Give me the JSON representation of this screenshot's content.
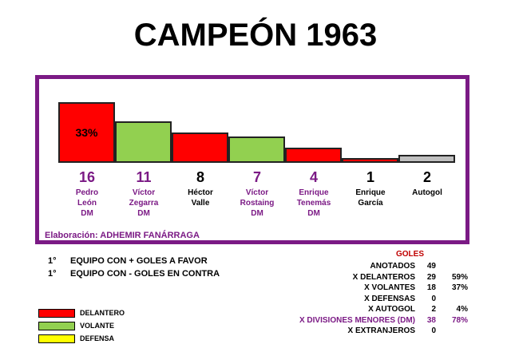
{
  "title": "CAMPEÓN 1963",
  "colors": {
    "frame": "#7b1a85",
    "delantero": "#ff0000",
    "volante": "#92d050",
    "defensa": "#ffff00",
    "autogol": "#bfbfbf",
    "dm_text": "#7b1a85",
    "goles_header": "#c00000"
  },
  "chart_data": {
    "type": "bar",
    "categories": [
      "Pedro León DM",
      "Víctor Zegarra DM",
      "Héctor Valle",
      "Víctor Rostaing DM",
      "Enrique Tenemás DM",
      "Enrique García",
      "Autogol"
    ],
    "values": [
      16,
      11,
      8,
      7,
      4,
      1,
      2
    ],
    "annotations": [
      {
        "category": "Pedro León DM",
        "text": "33%"
      }
    ],
    "ylim": [
      0,
      16
    ],
    "grid": false
  },
  "players": [
    {
      "goals": "16",
      "name": "Pedro\nLeón\nDM",
      "role": "delantero",
      "dm": true
    },
    {
      "goals": "11",
      "name": "Víctor\nZegarra\nDM",
      "role": "volante",
      "dm": true
    },
    {
      "goals": "8",
      "name": "Héctor\nValle",
      "role": "delantero",
      "dm": false
    },
    {
      "goals": "7",
      "name": "Víctor\nRostaing\nDM",
      "role": "volante",
      "dm": true
    },
    {
      "goals": "4",
      "name": "Enrique\nTenemás\nDM",
      "role": "delantero",
      "dm": true
    },
    {
      "goals": "1",
      "name": "Enrique\nGarcía",
      "role": "delantero",
      "dm": false
    },
    {
      "goals": "2",
      "name": "Autogol",
      "role": "autogol",
      "dm": false
    }
  ],
  "top_pct": "33%",
  "credit": "Elaboración: ADHEMIR FANÁRRAGA",
  "notes": [
    {
      "ord": "1°",
      "text": "EQUIPO CON + GOLES A FAVOR"
    },
    {
      "ord": "1°",
      "text": "EQUIPO CON - GOLES EN CONTRA"
    }
  ],
  "goles": {
    "header": "GOLES",
    "rows": [
      {
        "label": "ANOTADOS",
        "value": "49",
        "pct": "",
        "highlight": false
      },
      {
        "label": "X DELANTEROS",
        "value": "29",
        "pct": "59%",
        "highlight": false
      },
      {
        "label": "X VOLANTES",
        "value": "18",
        "pct": "37%",
        "highlight": false
      },
      {
        "label": "X DEFENSAS",
        "value": "0",
        "pct": "",
        "highlight": false
      },
      {
        "label": "X AUTOGOL",
        "value": "2",
        "pct": "4%",
        "highlight": false
      },
      {
        "label": "X DIVISIONES MENORES (DM)",
        "value": "38",
        "pct": "78%",
        "highlight": true
      },
      {
        "label": "X EXTRANJEROS",
        "value": "0",
        "pct": "",
        "highlight": false
      }
    ]
  },
  "legend": [
    {
      "label": "DELANTERO",
      "color": "#ff0000"
    },
    {
      "label": "VOLANTE",
      "color": "#92d050"
    },
    {
      "label": "DEFENSA",
      "color": "#ffff00"
    }
  ]
}
